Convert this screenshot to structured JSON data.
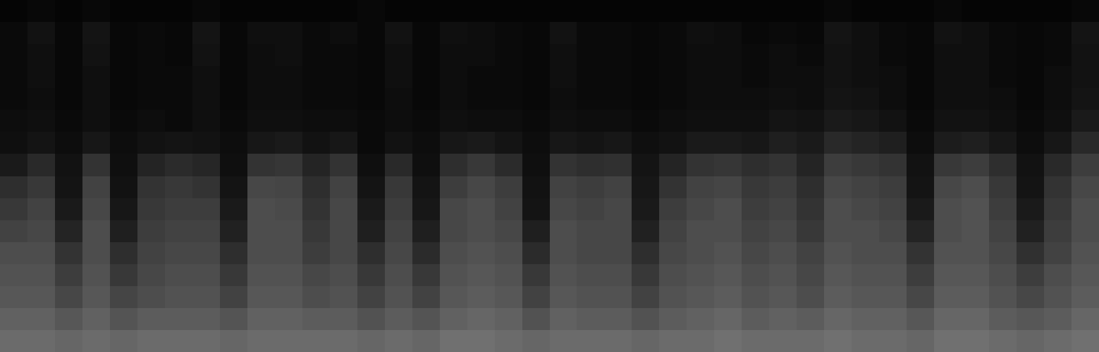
{
  "chart_data": {
    "type": "heatmap",
    "tick_labels": false,
    "zlim": [
      0,
      100
    ],
    "z": [
      [
        2,
        3,
        2,
        3,
        2,
        2,
        2,
        3,
        2,
        2,
        2,
        2,
        2,
        3,
        2,
        2,
        2,
        2,
        2,
        2,
        2,
        2,
        2,
        2,
        2,
        2,
        2,
        2,
        2,
        2,
        3,
        2,
        2,
        2,
        3,
        2,
        2,
        2,
        2,
        3
      ],
      [
        4,
        7,
        3,
        8,
        3,
        4,
        3,
        8,
        3,
        6,
        6,
        4,
        5,
        3,
        7,
        3,
        6,
        5,
        4,
        3,
        7,
        4,
        4,
        3,
        4,
        6,
        5,
        3,
        4,
        3,
        8,
        6,
        4,
        3,
        7,
        6,
        4,
        3,
        4,
        8
      ],
      [
        4,
        6,
        3,
        7,
        3,
        4,
        3,
        7,
        3,
        5,
        6,
        4,
        4,
        3,
        6,
        3,
        5,
        5,
        4,
        3,
        6,
        4,
        4,
        3,
        4,
        5,
        5,
        4,
        5,
        4,
        7,
        6,
        4,
        3,
        6,
        6,
        4,
        3,
        4,
        7
      ],
      [
        4,
        6,
        3,
        6,
        3,
        4,
        4,
        6,
        3,
        5,
        5,
        4,
        4,
        3,
        6,
        3,
        5,
        4,
        4,
        3,
        6,
        4,
        4,
        3,
        4,
        5,
        5,
        4,
        5,
        5,
        7,
        6,
        5,
        3,
        6,
        6,
        4,
        3,
        5,
        7
      ],
      [
        4,
        5,
        3,
        6,
        3,
        4,
        4,
        6,
        3,
        5,
        5,
        4,
        4,
        3,
        5,
        3,
        5,
        4,
        4,
        3,
        5,
        4,
        4,
        3,
        4,
        5,
        5,
        5,
        6,
        5,
        8,
        7,
        5,
        3,
        6,
        6,
        5,
        3,
        5,
        8
      ],
      [
        5,
        6,
        4,
        6,
        4,
        5,
        4,
        6,
        4,
        6,
        6,
        5,
        5,
        4,
        5,
        4,
        6,
        5,
        5,
        4,
        6,
        5,
        5,
        4,
        5,
        6,
        6,
        6,
        8,
        7,
        10,
        9,
        7,
        4,
        7,
        7,
        6,
        4,
        6,
        10
      ],
      [
        6,
        8,
        5,
        9,
        5,
        7,
        8,
        7,
        5,
        9,
        10,
        7,
        9,
        4,
        7,
        5,
        9,
        10,
        8,
        5,
        9,
        8,
        9,
        6,
        7,
        10,
        10,
        9,
        12,
        10,
        16,
        14,
        12,
        5,
        11,
        12,
        9,
        5,
        9,
        16
      ],
      [
        10,
        16,
        7,
        20,
        6,
        14,
        17,
        15,
        6,
        20,
        21,
        14,
        20,
        6,
        16,
        6,
        18,
        22,
        17,
        6,
        20,
        18,
        19,
        8,
        14,
        20,
        21,
        18,
        20,
        14,
        24,
        22,
        20,
        7,
        22,
        24,
        18,
        7,
        16,
        24
      ],
      [
        18,
        22,
        8,
        26,
        7,
        20,
        22,
        20,
        8,
        28,
        27,
        18,
        26,
        8,
        22,
        8,
        24,
        28,
        24,
        7,
        26,
        24,
        26,
        9,
        20,
        26,
        27,
        22,
        24,
        18,
        28,
        26,
        24,
        8,
        28,
        30,
        22,
        8,
        20,
        28
      ],
      [
        22,
        26,
        10,
        28,
        9,
        22,
        24,
        24,
        10,
        30,
        29,
        20,
        28,
        10,
        24,
        9,
        28,
        30,
        26,
        8,
        28,
        26,
        28,
        10,
        24,
        28,
        30,
        24,
        26,
        20,
        30,
        28,
        26,
        10,
        30,
        32,
        24,
        10,
        22,
        30
      ],
      [
        26,
        28,
        14,
        30,
        12,
        24,
        26,
        26,
        13,
        30,
        30,
        22,
        28,
        12,
        26,
        12,
        28,
        30,
        28,
        12,
        30,
        28,
        28,
        13,
        26,
        30,
        30,
        26,
        28,
        22,
        30,
        30,
        28,
        14,
        30,
        32,
        26,
        13,
        24,
        30
      ],
      [
        30,
        30,
        20,
        30,
        18,
        26,
        28,
        28,
        18,
        30,
        30,
        24,
        28,
        18,
        28,
        17,
        30,
        32,
        30,
        17,
        30,
        28,
        28,
        18,
        28,
        30,
        32,
        28,
        30,
        26,
        32,
        30,
        30,
        20,
        32,
        32,
        28,
        19,
        26,
        32
      ],
      [
        32,
        32,
        24,
        32,
        22,
        28,
        30,
        30,
        22,
        32,
        32,
        28,
        30,
        22,
        30,
        22,
        32,
        34,
        32,
        22,
        32,
        30,
        30,
        22,
        30,
        32,
        34,
        30,
        32,
        28,
        34,
        32,
        32,
        24,
        34,
        34,
        30,
        24,
        30,
        34
      ],
      [
        34,
        34,
        28,
        34,
        27,
        30,
        32,
        32,
        26,
        34,
        34,
        30,
        32,
        26,
        32,
        26,
        34,
        36,
        34,
        26,
        34,
        32,
        32,
        26,
        32,
        34,
        36,
        32,
        34,
        30,
        36,
        34,
        34,
        28,
        36,
        36,
        32,
        28,
        32,
        36
      ],
      [
        38,
        38,
        34,
        38,
        33,
        36,
        36,
        36,
        33,
        38,
        38,
        36,
        36,
        32,
        36,
        33,
        38,
        40,
        38,
        32,
        38,
        36,
        36,
        32,
        36,
        38,
        40,
        36,
        38,
        36,
        40,
        38,
        38,
        34,
        40,
        40,
        36,
        34,
        36,
        40
      ],
      [
        42,
        42,
        40,
        42,
        40,
        42,
        42,
        42,
        40,
        42,
        42,
        42,
        42,
        40,
        42,
        40,
        44,
        44,
        42,
        40,
        42,
        42,
        42,
        40,
        42,
        42,
        44,
        42,
        42,
        42,
        44,
        42,
        42,
        40,
        44,
        44,
        42,
        40,
        42,
        44
      ]
    ]
  }
}
